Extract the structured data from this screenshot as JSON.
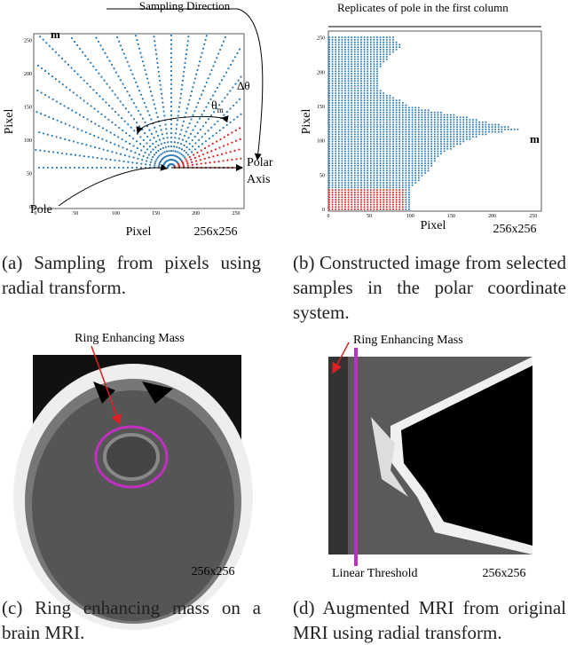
{
  "panels": {
    "a": {
      "title": "Sampling Direction",
      "m": "m",
      "delta": "Δθ",
      "theta": "θ",
      "theta_sub": "m",
      "polar": "Polar",
      "axis": "Axis",
      "pole": "Pole",
      "ylabel": "Pixel",
      "xlabel": "Pixel",
      "size": "256x256",
      "xticks": [
        0,
        50,
        100,
        150,
        200,
        250
      ],
      "yticks": [
        0,
        50,
        100,
        150,
        200,
        250
      ],
      "caption": "(a) Sampling from pixels using radial transform."
    },
    "b": {
      "title": "Replicates of pole in the first column",
      "m": "m",
      "ylabel": "Pixel",
      "xlabel": "Pixel",
      "size": "256x256",
      "xticks": [
        0,
        50,
        100,
        150,
        200,
        250
      ],
      "yticks": [
        0,
        50,
        100,
        150,
        200,
        250
      ],
      "caption": "(b) Constructed image from selected samples in the polar coordinate system."
    },
    "c": {
      "label": "Ring Enhancing Mass",
      "size": "256x256",
      "caption": "(c) Ring enhancing mass on a brain MRI."
    },
    "d": {
      "label": "Ring Enhancing Mass",
      "threshold": "Linear Threshold",
      "size": "256x256",
      "caption": "(d) Augmented MRI from original MRI using radial transform."
    }
  }
}
